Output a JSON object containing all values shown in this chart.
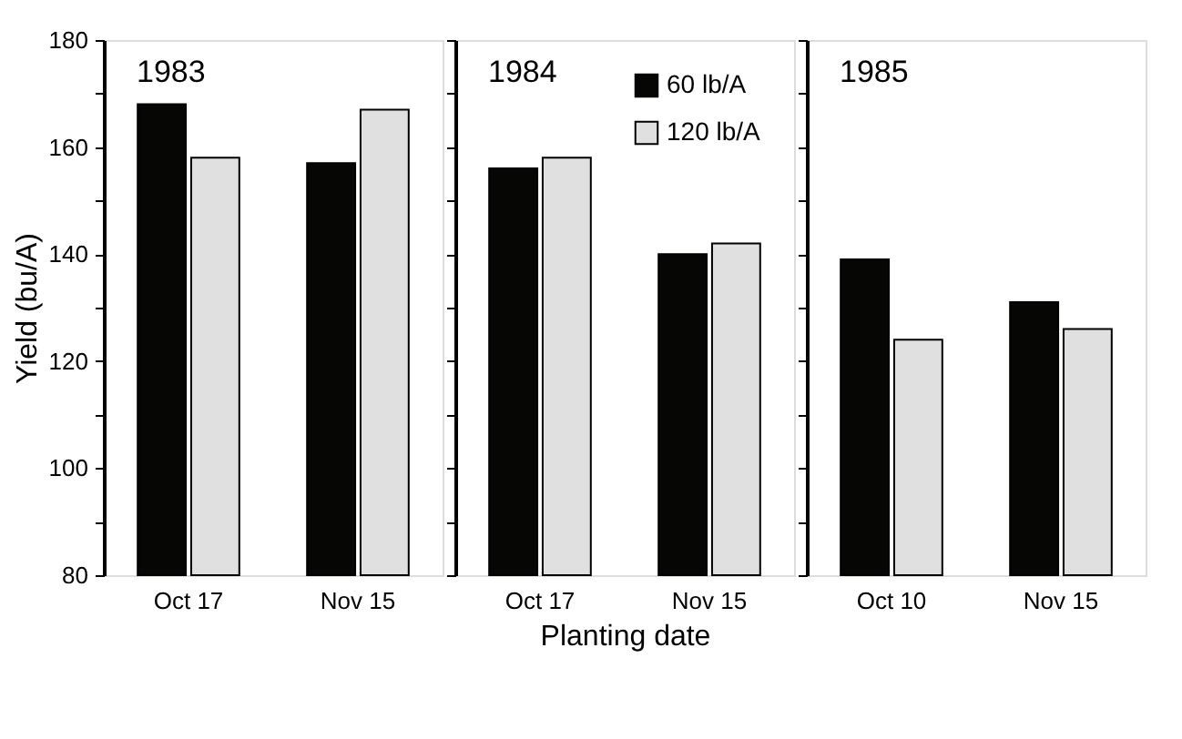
{
  "chart_data": [
    {
      "type": "bar",
      "annotations": [
        "1983"
      ],
      "ylabel": "Yield (bu/A)",
      "categories": [
        "Oct 17",
        "Nov 15"
      ],
      "series": [
        {
          "color": "#060604",
          "values": [
            168,
            157
          ]
        },
        {
          "color": "#e0e0e0",
          "values": [
            158,
            167
          ]
        }
      ],
      "ylim": [
        80,
        180
      ],
      "yticks": [
        80,
        {
          "value": 90,
          "label": null
        },
        100,
        {
          "value": 110,
          "label": null
        },
        120,
        {
          "value": 130,
          "label": null
        },
        140,
        {
          "value": 150,
          "label": null
        },
        160,
        {
          "value": 170,
          "label": null
        },
        180
      ],
      "grid": false
    },
    {
      "type": "bar",
      "annotations": [
        "1984"
      ],
      "xlabel": "Planting date",
      "categories": [
        "Oct 17",
        "Nov 15"
      ],
      "series": [
        {
          "name": "60 lb/A",
          "color": "#060604",
          "values": [
            156,
            140
          ]
        },
        {
          "name": "120 lb/A",
          "color": "#e0e0e0",
          "values": [
            158,
            142
          ]
        }
      ],
      "ylim": [
        80,
        180
      ],
      "yticks": [
        80,
        {
          "value": 90,
          "label": null
        },
        100,
        {
          "value": 110,
          "label": null
        },
        120,
        {
          "value": 130,
          "label": null
        },
        140,
        {
          "value": 150,
          "label": null
        },
        160,
        {
          "value": 170,
          "label": null
        },
        180
      ],
      "tick_labels": "x",
      "legend": "top right",
      "grid": false
    },
    {
      "type": "bar",
      "annotations": [
        "1985"
      ],
      "categories": [
        "Oct 10",
        "Nov 15"
      ],
      "series": [
        {
          "color": "#060604",
          "values": [
            139,
            131
          ]
        },
        {
          "color": "#e0e0e0",
          "values": [
            124,
            126
          ]
        }
      ],
      "ylim": [
        80,
        180
      ],
      "yticks": [
        80,
        {
          "value": 90,
          "label": null
        },
        100,
        {
          "value": 110,
          "label": null
        },
        120,
        {
          "value": 130,
          "label": null
        },
        140,
        {
          "value": 150,
          "label": null
        },
        160,
        {
          "value": 170,
          "label": null
        },
        180
      ],
      "tick_labels": "x",
      "grid": false
    }
  ]
}
